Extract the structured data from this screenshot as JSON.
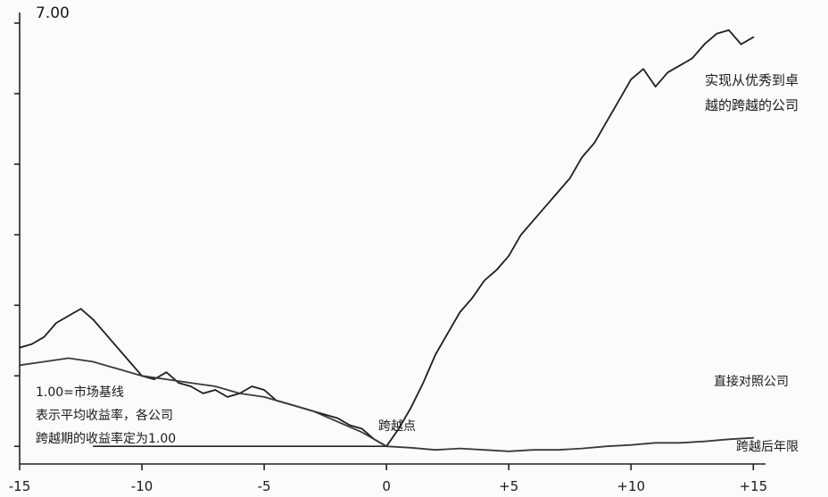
{
  "chart_data": {
    "type": "line",
    "ylabel_top": "7.00",
    "x_ticks": [
      {
        "value": -15,
        "label": "-15"
      },
      {
        "value": -10,
        "label": "-10"
      },
      {
        "value": -5,
        "label": "-5"
      },
      {
        "value": 0,
        "label": "0"
      },
      {
        "value": 5,
        "label": "+5"
      },
      {
        "value": 10,
        "label": "+10"
      },
      {
        "value": 15,
        "label": "+15"
      }
    ],
    "xlim": [
      -15,
      15.5
    ],
    "ylim": [
      0.75,
      7.1
    ],
    "y_ticks": [
      1.0,
      2.0,
      3.0,
      4.0,
      5.0,
      6.0,
      7.0
    ],
    "baseline": 1.0,
    "series": [
      {
        "name": "实现从优秀到卓越的跨越的公司",
        "x": [
          -15,
          -14.5,
          -14,
          -13.5,
          -13,
          -12.5,
          -12,
          -11.5,
          -11,
          -10.5,
          -10,
          -9.5,
          -9,
          -8.5,
          -8,
          -7.5,
          -7,
          -6.5,
          -6,
          -5.5,
          -5,
          -4.5,
          -4,
          -3.5,
          -3,
          -2.5,
          -2,
          -1.5,
          -1,
          -0.5,
          0,
          0.5,
          1,
          1.5,
          2,
          2.5,
          3,
          3.5,
          4,
          4.5,
          5,
          5.5,
          6,
          6.5,
          7,
          7.5,
          8,
          8.5,
          9,
          9.5,
          10,
          10.5,
          11,
          11.5,
          12,
          12.5,
          13,
          13.5,
          14,
          14.5,
          15
        ],
        "y": [
          2.4,
          2.45,
          2.55,
          2.75,
          2.85,
          2.95,
          2.8,
          2.6,
          2.4,
          2.2,
          2.0,
          1.95,
          2.05,
          1.9,
          1.85,
          1.75,
          1.8,
          1.7,
          1.75,
          1.85,
          1.8,
          1.65,
          1.6,
          1.55,
          1.5,
          1.45,
          1.4,
          1.3,
          1.25,
          1.1,
          1.0,
          1.25,
          1.55,
          1.9,
          2.3,
          2.6,
          2.9,
          3.1,
          3.35,
          3.5,
          3.7,
          4.0,
          4.2,
          4.4,
          4.6,
          4.8,
          5.1,
          5.3,
          5.6,
          5.9,
          6.2,
          6.35,
          6.1,
          6.3,
          6.4,
          6.5,
          6.7,
          6.85,
          6.9,
          6.7,
          6.8
        ]
      },
      {
        "name": "直接对照公司",
        "x": [
          -15,
          -14,
          -13,
          -12,
          -11,
          -10,
          -9,
          -8,
          -7,
          -6,
          -5,
          -4,
          -3,
          -2,
          -1,
          0,
          1,
          2,
          3,
          4,
          5,
          6,
          7,
          8,
          9,
          10,
          11,
          12,
          13,
          14,
          15
        ],
        "y": [
          2.15,
          2.2,
          2.25,
          2.2,
          2.1,
          2.0,
          1.95,
          1.9,
          1.85,
          1.75,
          1.7,
          1.6,
          1.5,
          1.35,
          1.2,
          1.0,
          0.98,
          0.95,
          0.97,
          0.95,
          0.93,
          0.95,
          0.95,
          0.97,
          1.0,
          1.02,
          1.05,
          1.05,
          1.07,
          1.1,
          1.12
        ]
      }
    ],
    "annotations": {
      "great_label_line1": "实现从优秀到卓",
      "great_label_line2": "越的跨越的公司",
      "comparison_label": "直接对照公司",
      "baseline_line1": "1.00=市场基线",
      "baseline_line2": "表示平均收益率，各公司",
      "baseline_line3": "跨越期的收益率定为1.00",
      "transition_point": "跨越点",
      "post_transition": "跨越后年限"
    }
  }
}
